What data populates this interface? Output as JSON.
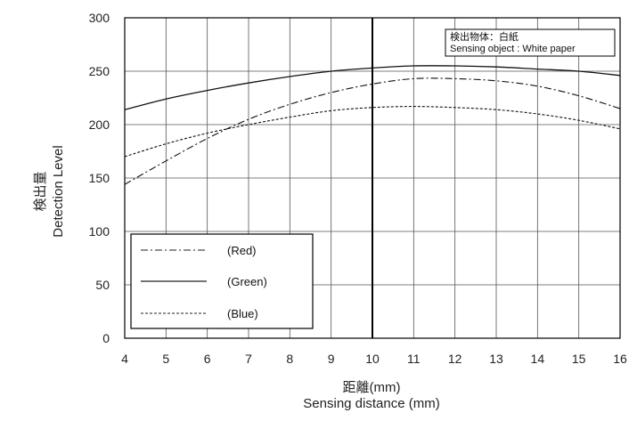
{
  "chart_data": {
    "type": "line",
    "xlabel_jp": "距離(mm)",
    "xlabel": "Sensing distance (mm)",
    "ylabel_jp": "検出量",
    "ylabel": "Detection Level",
    "xlim": [
      4,
      16
    ],
    "ylim": [
      0,
      300
    ],
    "x_ticks": [
      4,
      5,
      6,
      7,
      8,
      9,
      10,
      11,
      12,
      13,
      14,
      15,
      16
    ],
    "y_ticks": [
      0,
      50,
      100,
      150,
      200,
      250,
      300
    ],
    "grid": true,
    "annotation": {
      "line1": "検出物体：白紙",
      "line2": "Sensing object : White paper"
    },
    "legend_position": "bottom-left",
    "series": [
      {
        "name": "(Red)",
        "style": "dashdot",
        "x": [
          4,
          5,
          6,
          7,
          8,
          9,
          10,
          11,
          12,
          13,
          14,
          15,
          16
        ],
        "values": [
          144,
          166,
          187,
          205,
          219,
          230,
          238,
          243,
          243,
          241,
          236,
          227,
          215
        ]
      },
      {
        "name": "(Green)",
        "style": "solid",
        "x": [
          4,
          5,
          6,
          7,
          8,
          9,
          10,
          11,
          12,
          13,
          14,
          15,
          16
        ],
        "values": [
          214,
          224,
          232,
          239,
          245,
          250,
          253,
          255,
          255,
          254,
          252,
          250,
          246
        ]
      },
      {
        "name": "(Blue)",
        "style": "dashed",
        "x": [
          4,
          5,
          6,
          7,
          8,
          9,
          10,
          11,
          12,
          13,
          14,
          15,
          16
        ],
        "values": [
          170,
          182,
          192,
          200,
          207,
          213,
          216,
          217,
          216,
          214,
          210,
          204,
          196
        ]
      }
    ]
  }
}
